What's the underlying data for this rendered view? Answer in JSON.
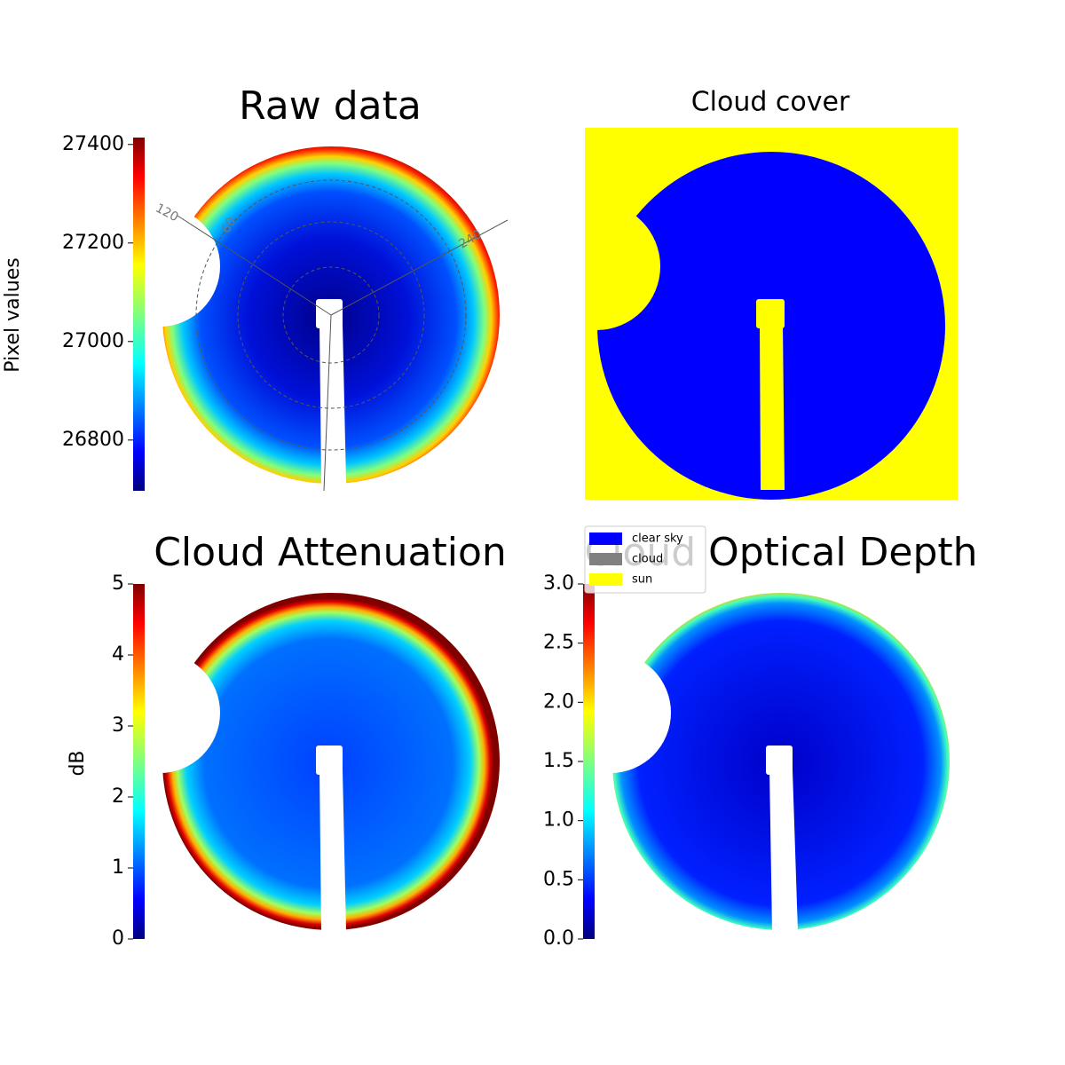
{
  "chart_data": [
    {
      "type": "heatmap",
      "title": "Raw data",
      "colormap": "jet",
      "colorbar": {
        "label": "Pixel values",
        "lim": [
          26697,
          27414
        ],
        "ticks": [
          26800,
          27000,
          27200,
          27400
        ]
      },
      "polar_labels": [
        "120",
        "60",
        "240"
      ]
    },
    {
      "type": "categorical-map",
      "title": "Cloud cover",
      "legend": [
        {
          "name": "clear sky",
          "color": "#0000ff"
        },
        {
          "name": "cloud",
          "color": "#808080"
        },
        {
          "name": "sun",
          "color": "#ffff00"
        }
      ]
    },
    {
      "type": "heatmap",
      "title": "Cloud Attenuation",
      "colormap": "jet",
      "colorbar": {
        "label": "dB",
        "lim": [
          0,
          5
        ],
        "ticks": [
          0,
          1,
          2,
          3,
          4,
          5
        ]
      }
    },
    {
      "type": "heatmap",
      "title": "Cloud Optical Depth",
      "colormap": "jet",
      "colorbar": {
        "lim": [
          0,
          3
        ],
        "ticks": [
          {
            "value": 0,
            "label": "0.0"
          },
          {
            "value": 0.5,
            "label": "0.5"
          },
          {
            "value": 1,
            "label": "1.0"
          },
          {
            "value": 1.5,
            "label": "1.5"
          },
          {
            "value": 2,
            "label": "2.0"
          },
          {
            "value": 2.5,
            "label": "2.5"
          },
          {
            "value": 3,
            "label": "3.0"
          }
        ]
      }
    }
  ]
}
